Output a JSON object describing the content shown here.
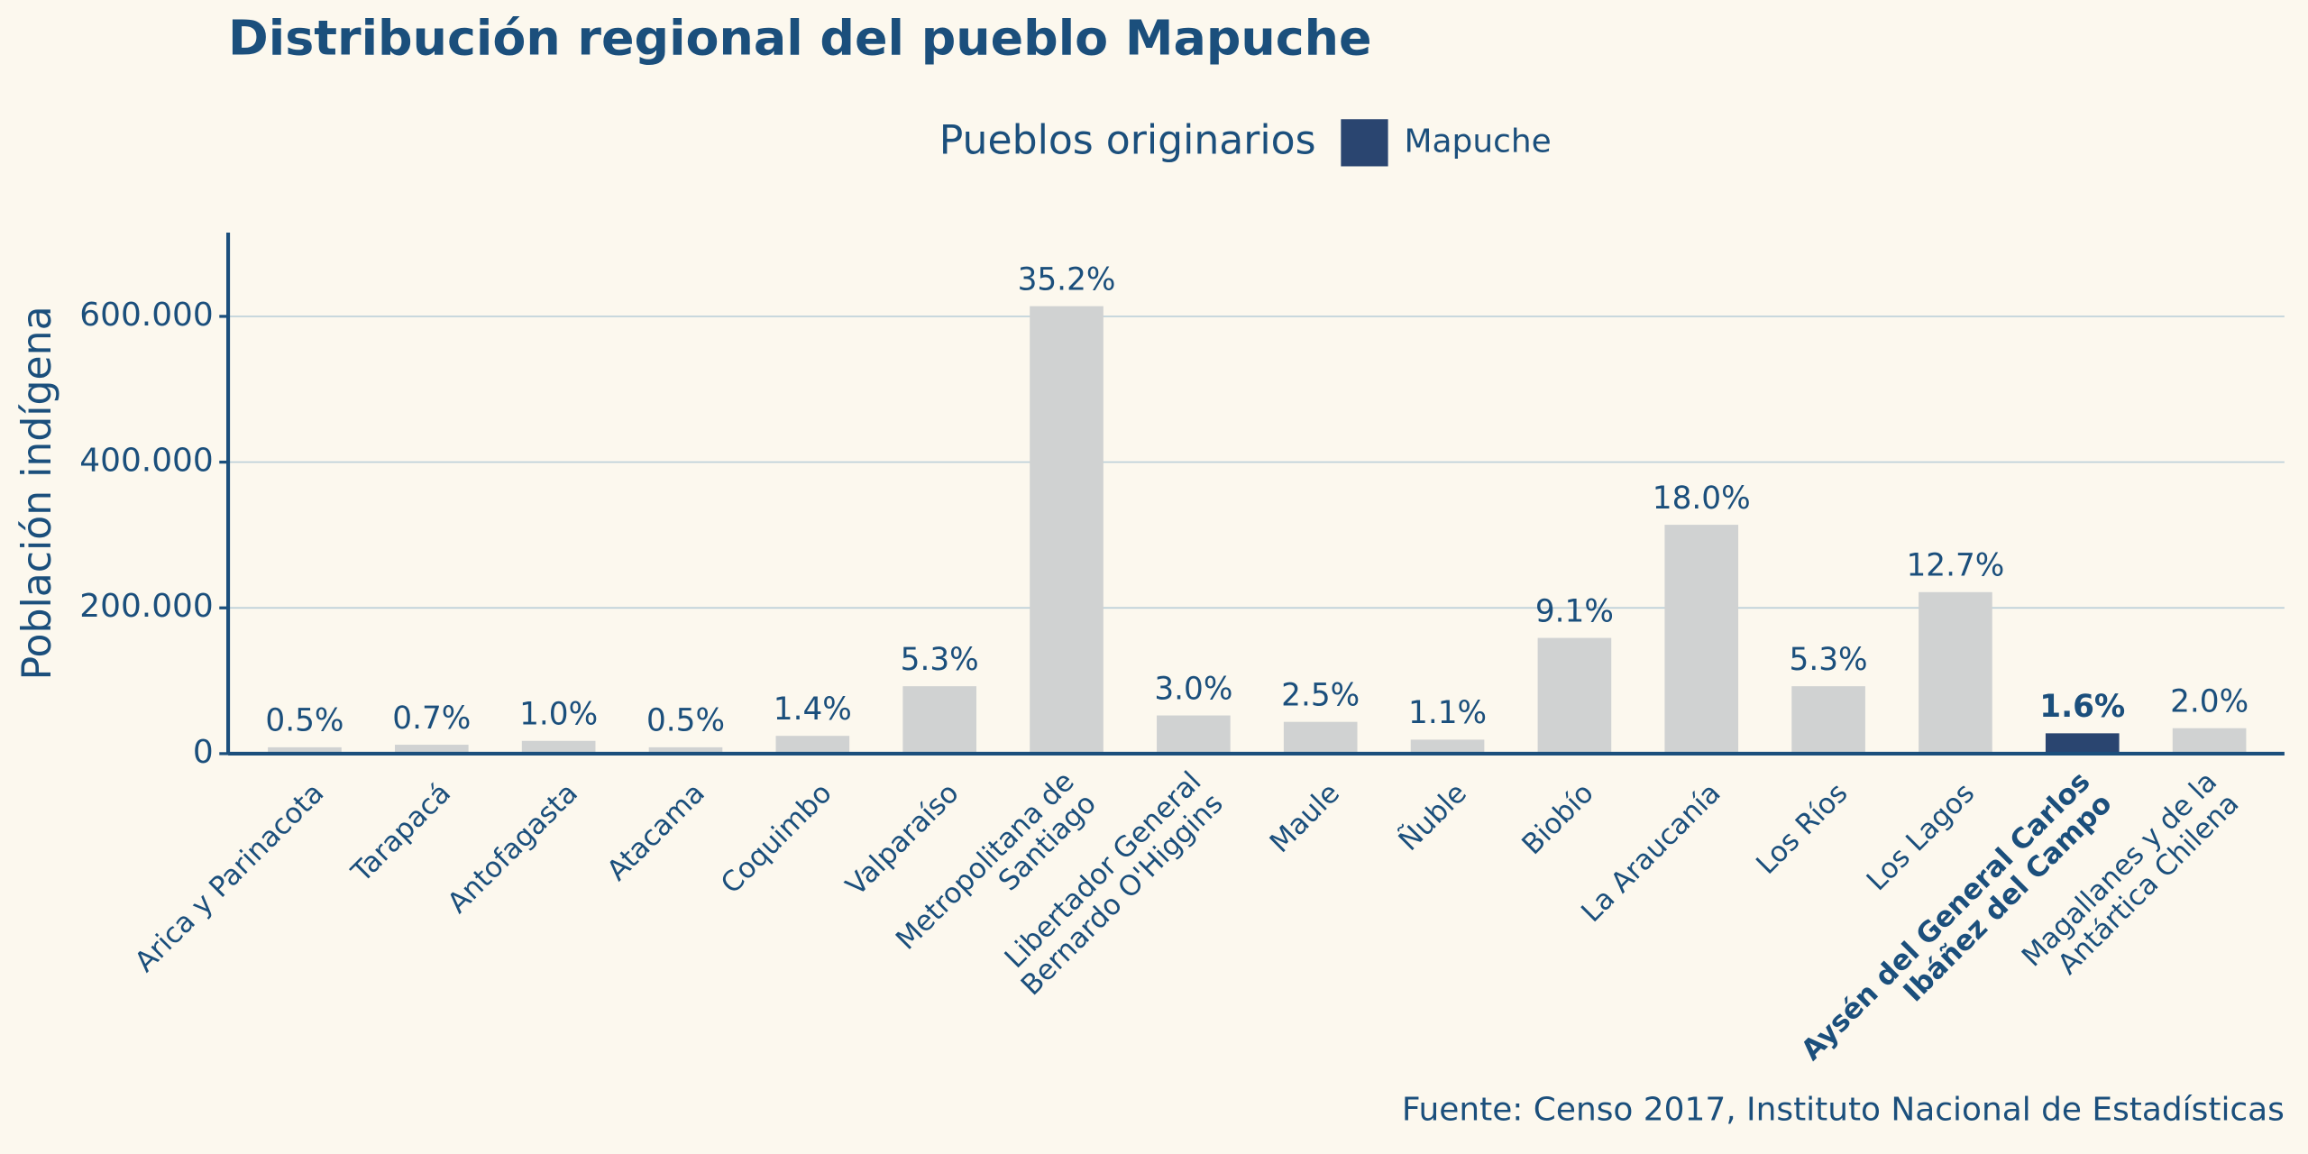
{
  "chart_data": {
    "type": "bar",
    "title": "Distribución regional del pueblo Mapuche",
    "legend_title": "Pueblos originarios",
    "y_label": "Población indígena",
    "source": "Fuente: Censo 2017, Instituto Nacional de Estadísticas",
    "categories": [
      [
        "Arica y Parinacota"
      ],
      [
        "Tarapacá"
      ],
      [
        "Antofagasta"
      ],
      [
        "Atacama"
      ],
      [
        "Coquimbo"
      ],
      [
        "Valparaíso"
      ],
      [
        "Metropolitana de",
        "Santiago"
      ],
      [
        "Libertador General",
        "Bernardo O'Higgins"
      ],
      [
        "Maule"
      ],
      [
        "Ñuble"
      ],
      [
        "Biobío"
      ],
      [
        "La Araucanía"
      ],
      [
        "Los Ríos"
      ],
      [
        "Los Lagos"
      ],
      [
        "Aysén del General Carlos",
        "Ibáñez del Campo"
      ],
      [
        "Magallanes y de la",
        "Antártica Chilena"
      ]
    ],
    "series": [
      {
        "name": "Mapuche",
        "color": "#2a4570",
        "values": [
          8700,
          12200,
          17500,
          8700,
          24400,
          92500,
          614000,
          52400,
          43600,
          19200,
          158800,
          314000,
          92500,
          221600,
          27900,
          34900
        ],
        "value_labels": [
          "0.5%",
          "0.7%",
          "1.0%",
          "0.5%",
          "1.4%",
          "5.3%",
          "35.2%",
          "3.0%",
          "2.5%",
          "1.1%",
          "9.1%",
          "18.0%",
          "5.3%",
          "12.7%",
          "1.6%",
          "2.0%"
        ],
        "colors": [
          "#d0d2d2",
          "#d0d2d2",
          "#d0d2d2",
          "#d0d2d2",
          "#d0d2d2",
          "#d0d2d2",
          "#d0d2d2",
          "#d0d2d2",
          "#d0d2d2",
          "#d0d2d2",
          "#d0d2d2",
          "#d0d2d2",
          "#d0d2d2",
          "#d0d2d2",
          "#2a4570",
          "#d0d2d2"
        ]
      }
    ],
    "ylim": [
      0,
      715000
    ],
    "yticks": [
      0,
      {
        "value": 200000,
        "label": "200.000"
      },
      {
        "value": 400000,
        "label": "400.000"
      },
      {
        "value": 600000,
        "label": "600.000"
      }
    ],
    "grid": true
  }
}
